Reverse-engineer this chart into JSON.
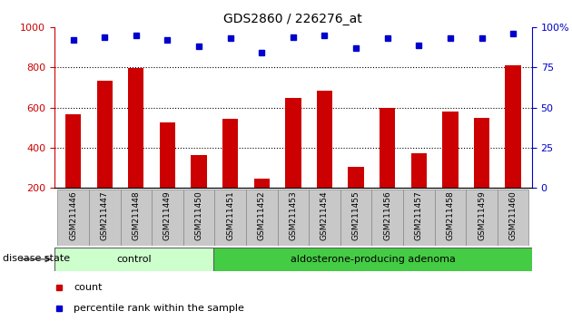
{
  "title": "GDS2860 / 226276_at",
  "samples": [
    "GSM211446",
    "GSM211447",
    "GSM211448",
    "GSM211449",
    "GSM211450",
    "GSM211451",
    "GSM211452",
    "GSM211453",
    "GSM211454",
    "GSM211455",
    "GSM211456",
    "GSM211457",
    "GSM211458",
    "GSM211459",
    "GSM211460"
  ],
  "counts": [
    565,
    735,
    795,
    525,
    365,
    545,
    245,
    648,
    685,
    305,
    600,
    370,
    578,
    548,
    810
  ],
  "percentiles": [
    92,
    94,
    95,
    92,
    88,
    93,
    84,
    94,
    95,
    87,
    93,
    89,
    93,
    93,
    96
  ],
  "ylim_left": [
    200,
    1000
  ],
  "ylim_right": [
    0,
    100
  ],
  "yticks_left": [
    200,
    400,
    600,
    800,
    1000
  ],
  "yticks_right": [
    0,
    25,
    50,
    75,
    100
  ],
  "bar_color": "#cc0000",
  "dot_color": "#0000cc",
  "grid_lines": [
    400,
    600,
    800
  ],
  "control_count": 5,
  "control_label": "control",
  "adenoma_label": "aldosterone-producing adenoma",
  "control_color": "#ccffcc",
  "adenoma_color": "#44cc44",
  "disease_label": "disease state",
  "legend_count_label": "count",
  "legend_pct_label": "percentile rank within the sample",
  "bar_width": 0.5,
  "label_bg_color": "#c8c8c8"
}
